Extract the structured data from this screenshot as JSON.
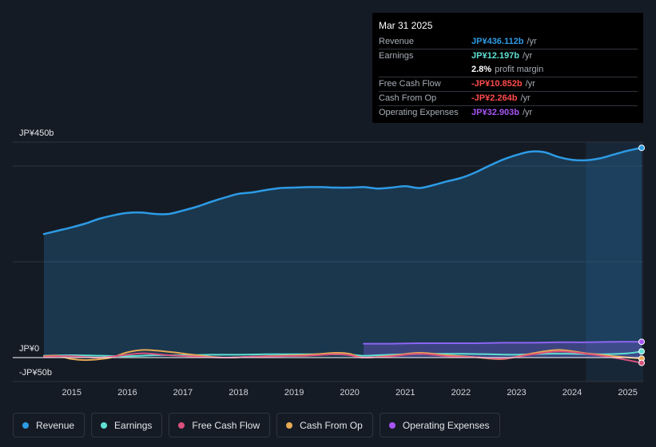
{
  "tooltip": {
    "date": "Mar 31 2025",
    "rows": [
      {
        "label": "Revenue",
        "value": "JP¥436.112b",
        "unit": "/yr",
        "color": "#2d9be5"
      },
      {
        "label": "Earnings",
        "value": "JP¥12.197b",
        "unit": "/yr",
        "color": "#5fe0d3"
      },
      {
        "label": "",
        "value": "2.8%",
        "unit": "profit margin",
        "color": "#ffffff"
      },
      {
        "label": "Free Cash Flow",
        "value": "-JP¥10.852b",
        "unit": "/yr",
        "color": "#ff4a4a"
      },
      {
        "label": "Cash From Op",
        "value": "-JP¥2.264b",
        "unit": "/yr",
        "color": "#ff4a4a"
      },
      {
        "label": "Operating Expenses",
        "value": "JP¥32.903b",
        "unit": "/yr",
        "color": "#a855f7"
      }
    ]
  },
  "legend": [
    {
      "label": "Revenue",
      "color": "#2d9be5"
    },
    {
      "label": "Earnings",
      "color": "#5fe0d3"
    },
    {
      "label": "Free Cash Flow",
      "color": "#d9517c"
    },
    {
      "label": "Cash From Op",
      "color": "#e8aa55"
    },
    {
      "label": "Operating Expenses",
      "color": "#a855f7"
    }
  ],
  "chart_data": {
    "type": "area",
    "y_top_label": "JP¥450b",
    "y_zero_label": "JP¥0",
    "y_bottom_label": "-JP¥50b",
    "ylim": [
      -50,
      450
    ],
    "xlim": [
      2014.4,
      2025.25
    ],
    "x_ticks": [
      2015,
      2016,
      2017,
      2018,
      2019,
      2020,
      2021,
      2022,
      2023,
      2024,
      2025
    ],
    "x_tick_labels": [
      "2015",
      "2016",
      "2017",
      "2018",
      "2019",
      "2020",
      "2021",
      "2022",
      "2023",
      "2024",
      "2025"
    ],
    "highlight_from": 2024.25,
    "series": [
      {
        "name": "Revenue",
        "color": "#2d9be5",
        "fill": true,
        "x": [
          2014.5,
          2014.75,
          2015.0,
          2015.25,
          2015.5,
          2015.75,
          2016.0,
          2016.25,
          2016.5,
          2016.75,
          2017.0,
          2017.25,
          2017.5,
          2017.75,
          2018.0,
          2018.25,
          2018.5,
          2018.75,
          2019.0,
          2019.25,
          2019.5,
          2019.75,
          2020.0,
          2020.25,
          2020.5,
          2020.75,
          2021.0,
          2021.25,
          2021.5,
          2021.75,
          2022.0,
          2022.25,
          2022.5,
          2022.75,
          2023.0,
          2023.25,
          2023.5,
          2023.75,
          2024.0,
          2024.25,
          2024.5,
          2024.75,
          2025.0,
          2025.25
        ],
        "values": [
          258,
          265,
          272,
          280,
          290,
          297,
          302,
          303,
          300,
          300,
          307,
          315,
          325,
          334,
          342,
          345,
          350,
          354,
          355,
          356,
          356,
          355,
          355,
          356,
          353,
          355,
          358,
          354,
          360,
          368,
          375,
          386,
          400,
          413,
          423,
          430,
          429,
          419,
          413,
          412,
          416,
          424,
          432,
          438
        ]
      },
      {
        "name": "Earnings",
        "color": "#5fe0d3",
        "fill": false,
        "x": [
          2014.5,
          2015.0,
          2015.5,
          2016.0,
          2016.5,
          2017.0,
          2017.5,
          2018.0,
          2018.5,
          2019.0,
          2019.5,
          2020.0,
          2020.25,
          2020.5,
          2021.0,
          2021.5,
          2022.0,
          2022.5,
          2023.0,
          2023.5,
          2024.0,
          2024.5,
          2025.0,
          2025.25
        ],
        "values": [
          4,
          5,
          4,
          3,
          5,
          5,
          6,
          6,
          7,
          7,
          7,
          6,
          4,
          5,
          7,
          8,
          8,
          7,
          6,
          8,
          8,
          7,
          9,
          13
        ]
      },
      {
        "name": "Free Cash Flow",
        "color": "#d9517c",
        "fill": false,
        "x": [
          2014.5,
          2015.0,
          2015.5,
          2016.0,
          2016.3,
          2016.75,
          2017.25,
          2017.75,
          2018.25,
          2018.75,
          2019.25,
          2019.75,
          2020.0,
          2020.25,
          2020.75,
          2021.25,
          2021.75,
          2022.25,
          2022.75,
          2023.25,
          2023.75,
          2024.25,
          2024.75,
          2025.25
        ],
        "values": [
          2,
          3,
          0,
          6,
          9,
          5,
          2,
          0,
          2,
          3,
          4,
          7,
          5,
          0,
          3,
          8,
          3,
          1,
          -2,
          6,
          13,
          8,
          0,
          -11
        ]
      },
      {
        "name": "Cash From Op",
        "color": "#e8aa55",
        "fill": false,
        "x": [
          2014.5,
          2014.75,
          2015.0,
          2015.3,
          2015.7,
          2016.0,
          2016.3,
          2016.75,
          2017.25,
          2017.75,
          2018.25,
          2018.75,
          2019.25,
          2019.75,
          2020.0,
          2020.25,
          2020.75,
          2021.25,
          2021.75,
          2022.25,
          2022.75,
          2023.25,
          2023.75,
          2024.25,
          2024.75,
          2025.25
        ],
        "values": [
          3,
          4,
          -3,
          -5,
          0,
          11,
          16,
          12,
          5,
          0,
          2,
          4,
          6,
          10,
          8,
          0,
          4,
          10,
          5,
          1,
          -3,
          8,
          16,
          9,
          3,
          -2
        ]
      },
      {
        "name": "Operating Expenses",
        "color": "#a855f7",
        "fill": true,
        "x": [
          2020.25,
          2020.75,
          2021.25,
          2021.75,
          2022.25,
          2022.75,
          2023.25,
          2023.75,
          2024.25,
          2024.75,
          2025.25
        ],
        "values": [
          29,
          29,
          30,
          30,
          30,
          31,
          31,
          32,
          32,
          33,
          33
        ]
      }
    ]
  }
}
